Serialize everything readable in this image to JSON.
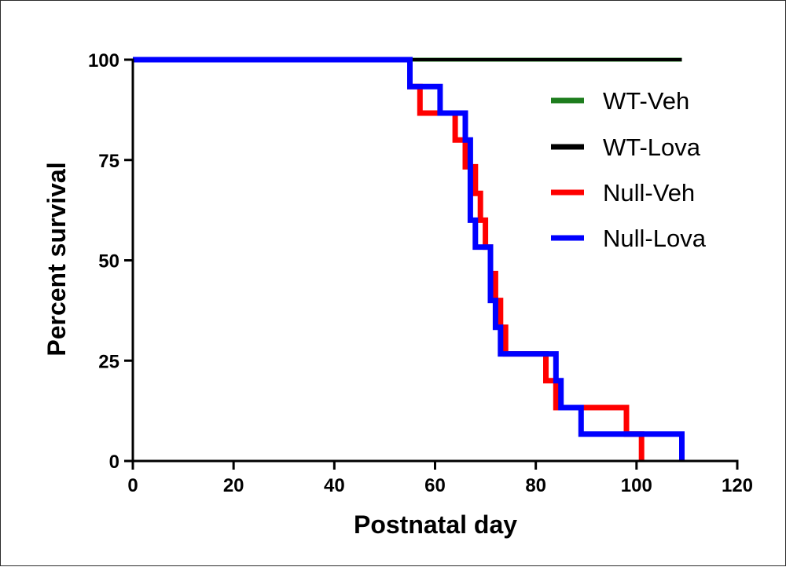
{
  "chart_data": {
    "type": "line",
    "step": true,
    "xlabel": "Postnatal day",
    "ylabel": "Percent survival",
    "xlim": [
      0,
      120
    ],
    "ylim": [
      0,
      100
    ],
    "xticks": [
      0,
      20,
      40,
      60,
      80,
      100,
      120
    ],
    "yticks": [
      0,
      25,
      50,
      75,
      100
    ],
    "grid": false,
    "legend_position": "right",
    "series": [
      {
        "name": "WT-Veh",
        "color": "#1e7d1e",
        "points": [
          [
            0,
            100
          ],
          [
            109,
            100
          ]
        ]
      },
      {
        "name": "WT-Lova",
        "color": "#000000",
        "points": [
          [
            0,
            100
          ],
          [
            109,
            100
          ]
        ]
      },
      {
        "name": "Null-Veh",
        "color": "#ff0000",
        "points": [
          [
            0,
            100
          ],
          [
            55,
            100
          ],
          [
            55,
            93.3
          ],
          [
            57,
            93.3
          ],
          [
            57,
            86.7
          ],
          [
            64,
            86.7
          ],
          [
            64,
            80
          ],
          [
            66,
            80
          ],
          [
            66,
            73.3
          ],
          [
            68,
            73.3
          ],
          [
            68,
            66.7
          ],
          [
            69,
            66.7
          ],
          [
            69,
            60
          ],
          [
            70,
            60
          ],
          [
            70,
            53.3
          ],
          [
            71,
            53.3
          ],
          [
            71,
            46.7
          ],
          [
            72,
            46.7
          ],
          [
            72,
            40
          ],
          [
            73,
            40
          ],
          [
            73,
            33.3
          ],
          [
            74,
            33.3
          ],
          [
            74,
            26.7
          ],
          [
            82,
            26.7
          ],
          [
            82,
            20
          ],
          [
            84,
            20
          ],
          [
            84,
            13.3
          ],
          [
            98,
            13.3
          ],
          [
            98,
            6.7
          ],
          [
            101,
            6.7
          ],
          [
            101,
            0
          ]
        ]
      },
      {
        "name": "Null-Lova",
        "color": "#0000ff",
        "points": [
          [
            0,
            100
          ],
          [
            55,
            100
          ],
          [
            55,
            93.3
          ],
          [
            61,
            93.3
          ],
          [
            61,
            86.7
          ],
          [
            66,
            86.7
          ],
          [
            66,
            80
          ],
          [
            67,
            80
          ],
          [
            67,
            60
          ],
          [
            68,
            60
          ],
          [
            68,
            53.3
          ],
          [
            71,
            53.3
          ],
          [
            71,
            40
          ],
          [
            72,
            40
          ],
          [
            72,
            33.3
          ],
          [
            73,
            33.3
          ],
          [
            73,
            26.7
          ],
          [
            84,
            26.7
          ],
          [
            84,
            20
          ],
          [
            85,
            20
          ],
          [
            85,
            13.3
          ],
          [
            89,
            13.3
          ],
          [
            89,
            6.7
          ],
          [
            109,
            6.7
          ],
          [
            109,
            0
          ]
        ]
      }
    ]
  }
}
